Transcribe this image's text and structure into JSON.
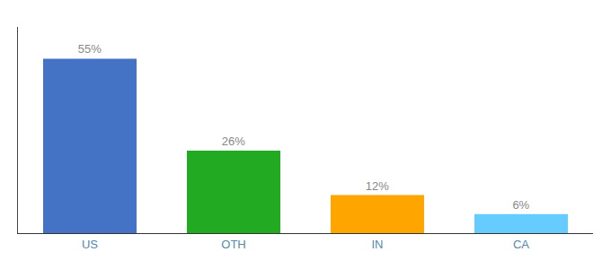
{
  "chart_data": {
    "type": "bar",
    "categories": [
      "US",
      "OTH",
      "IN",
      "CA"
    ],
    "values": [
      55,
      26,
      12,
      6
    ],
    "value_labels": [
      "55%",
      "26%",
      "12%",
      "6%"
    ],
    "colors": [
      "#4472C4",
      "#22AA22",
      "#FFA500",
      "#66CCFF"
    ],
    "ylim": [
      0,
      65
    ],
    "data_labels": true,
    "tick_labels": "x",
    "grid": false
  }
}
